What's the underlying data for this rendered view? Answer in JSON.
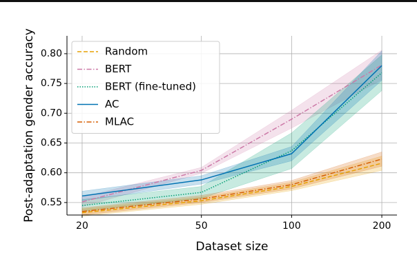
{
  "chart_data": {
    "type": "line",
    "xlabel": "Dataset size",
    "ylabel": "Post-adaptation gender accuracy",
    "x": [
      20,
      50,
      100,
      200
    ],
    "xscale": "log",
    "xlim": [
      17.8,
      224.7
    ],
    "xticks": [
      20,
      50,
      100,
      200
    ],
    "ylim": [
      0.529,
      0.83
    ],
    "yticks": [
      0.55,
      {
        "value": 0.6,
        "label": "0.60"
      },
      0.65,
      {
        "value": 0.7,
        "label": "0.70"
      },
      0.75,
      {
        "value": 0.8,
        "label": "0.80"
      }
    ],
    "grid": true,
    "legend": "upper left",
    "series": [
      {
        "name": "Random",
        "color": "#e69f00",
        "linestyle": "dashed",
        "values": [
          0.533,
          0.553,
          0.577,
          0.616
        ],
        "errors": [
          0.006,
          0.006,
          0.007,
          0.012
        ]
      },
      {
        "name": "BERT",
        "color": "#cc79a7",
        "linestyle": "dashdot",
        "values": [
          0.551,
          0.604,
          0.69,
          0.781
        ],
        "errors": [
          0.008,
          0.005,
          0.015,
          0.025
        ]
      },
      {
        "name": "BERT (fine-tuned)",
        "color": "#009e73",
        "linestyle": "dotted",
        "values": [
          0.545,
          0.567,
          0.637,
          0.768
        ],
        "errors": [
          0.01,
          0.01,
          0.03,
          0.03
        ]
      },
      {
        "name": "AC",
        "color": "#0072b2",
        "linestyle": "solid",
        "values": [
          0.561,
          0.588,
          0.632,
          0.78
        ],
        "errors": [
          0.008,
          0.007,
          0.012,
          0.025
        ]
      },
      {
        "name": "MLAC",
        "color": "#d55e00",
        "linestyle": "dashdot",
        "values": [
          0.535,
          0.556,
          0.58,
          0.623
        ],
        "errors": [
          0.006,
          0.006,
          0.007,
          0.012
        ]
      }
    ]
  }
}
